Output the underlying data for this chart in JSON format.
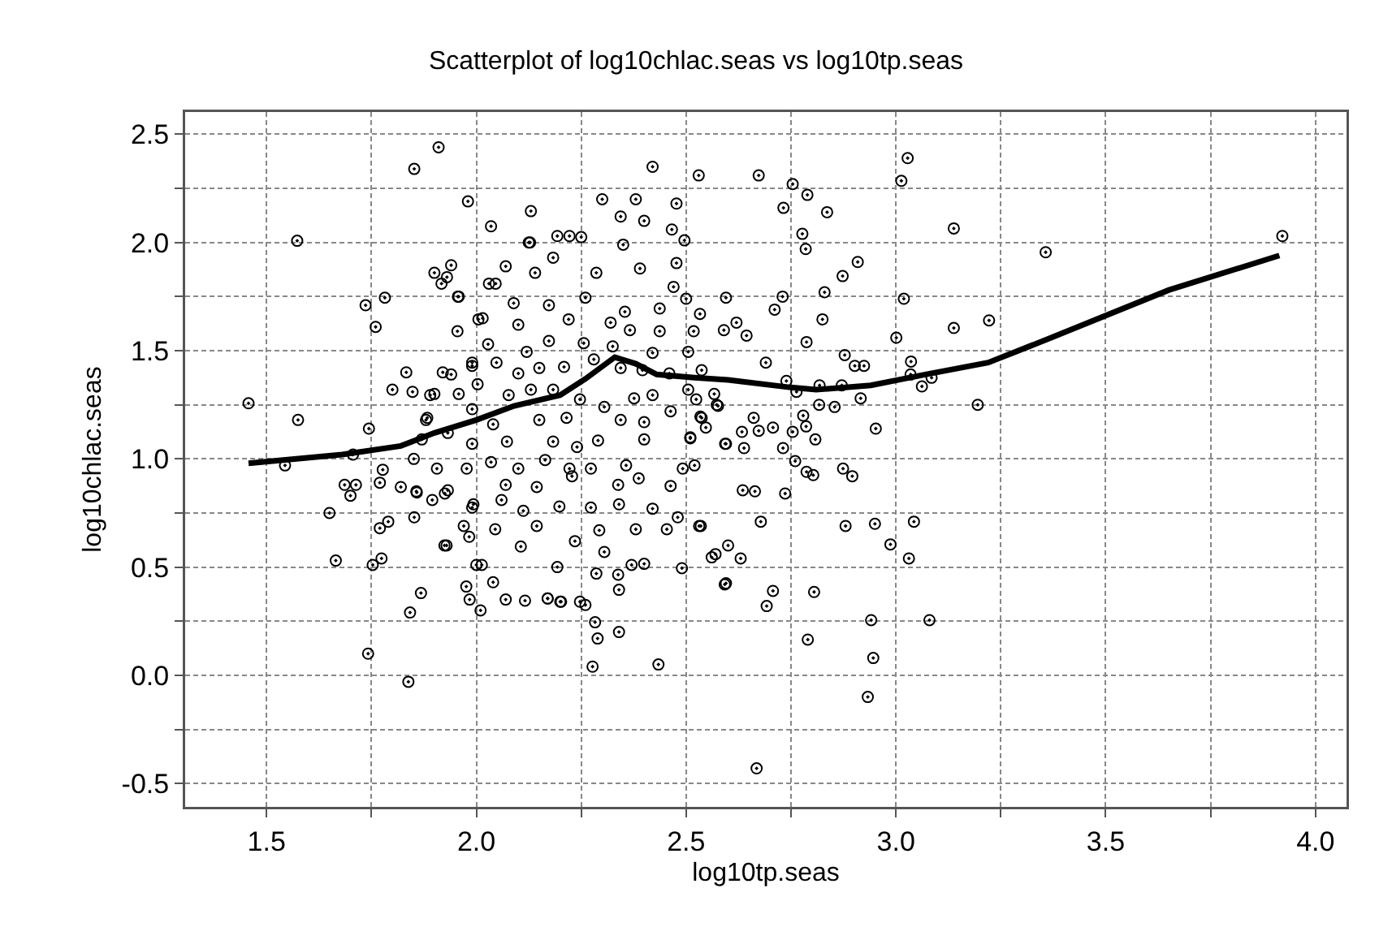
{
  "chart_data": {
    "type": "scatter",
    "title": "Scatterplot of log10chlac.seas vs log10tp.seas",
    "xlabel": "log10tp.seas",
    "ylabel": "log10chlac.seas",
    "xlim": [
      1.306,
      4.074
    ],
    "ylim": [
      -0.608,
      2.603
    ],
    "xticks": [
      1.5,
      {
        "value": 1.75,
        "label": null
      },
      "2.0",
      {
        "value": 2.25,
        "label": null
      },
      2.5,
      {
        "value": 2.75,
        "label": null
      },
      "3.0",
      {
        "value": 3.25,
        "label": null
      },
      3.5,
      {
        "value": 3.75,
        "label": null
      },
      "4.0"
    ],
    "yticks": [
      "-0.5",
      {
        "value": -0.25,
        "label": null
      },
      "0.0",
      {
        "value": 0.25,
        "label": null
      },
      0.5,
      {
        "value": 0.75,
        "label": null
      },
      "1.0",
      {
        "value": 1.25,
        "label": null
      },
      1.5,
      {
        "value": 1.75,
        "label": null
      },
      "2.0",
      {
        "value": 2.25,
        "label": null
      },
      2.5
    ],
    "grid": true,
    "series": [
      {
        "color": "#000000",
        "marker": "circle",
        "x": [
          1.457,
          1.573,
          1.575,
          1.544,
          1.65,
          1.665,
          1.686,
          1.713,
          1.7,
          1.706,
          1.736,
          1.76,
          1.782,
          1.744,
          1.742,
          1.753,
          1.774,
          1.77,
          1.79,
          1.77,
          1.777,
          1.82,
          1.838,
          1.852,
          1.91,
          1.842,
          1.868,
          1.852,
          1.857,
          1.851,
          1.833,
          1.8,
          1.848,
          1.88,
          1.87,
          1.895,
          1.89,
          1.9,
          1.917,
          1.93,
          1.94,
          1.956,
          1.925,
          1.924,
          1.92,
          1.94,
          1.955,
          1.98,
          1.97,
          1.976,
          1.984,
          2.01,
          2.0,
          1.993,
          1.99,
          2.035,
          2.005,
          2.03,
          2.04,
          2.07,
          2.116,
          2.125,
          2.17,
          2.2,
          2.13,
          2.3,
          2.38,
          2.42,
          2.53,
          2.477,
          2.344,
          2.4,
          2.193,
          2.222,
          2.25,
          2.128,
          2.466,
          2.496,
          2.35,
          2.183,
          2.39,
          2.477,
          2.47,
          2.5,
          2.286,
          2.14,
          2.07,
          2.046,
          1.958,
          2.089,
          2.173,
          2.26,
          2.354,
          2.437,
          2.015,
          2.1,
          2.22,
          2.32,
          2.366,
          2.437,
          2.518,
          2.028,
          2.12,
          2.173,
          2.256,
          2.325,
          2.42,
          2.505,
          1.99,
          2.048,
          2.1,
          2.15,
          2.209,
          2.28,
          2.344,
          2.396,
          2.46,
          2.537,
          1.9,
          1.958,
          2.003,
          2.077,
          2.13,
          2.183,
          2.247,
          2.305,
          2.376,
          2.42,
          2.505,
          2.576,
          1.883,
          1.99,
          2.04,
          2.15,
          2.215,
          2.344,
          2.4,
          2.463,
          2.537,
          1.932,
          1.99,
          2.073,
          2.183,
          2.24,
          2.29,
          2.4,
          2.51,
          2.595,
          1.906,
          1.977,
          2.035,
          2.1,
          2.164,
          2.222,
          2.273,
          2.357,
          2.492,
          1.858,
          1.932,
          1.99,
          2.07,
          2.144,
          2.228,
          2.338,
          2.387,
          2.463,
          2.06,
          2.112,
          2.198,
          2.273,
          2.34,
          2.42,
          2.48,
          1.983,
          2.045,
          2.144,
          2.235,
          2.293,
          2.38,
          2.454,
          2.535,
          2.106,
          1.929,
          2.013,
          2.193,
          2.305,
          2.37,
          2.4,
          2.49,
          2.57,
          2.595,
          2.286,
          2.338,
          2.17,
          2.202,
          2.247,
          2.26,
          2.283,
          2.289,
          2.34,
          2.34,
          2.277,
          2.434,
          2.673,
          2.754,
          2.789,
          2.732,
          2.836,
          3.028,
          3.013,
          2.777,
          2.785,
          3.138,
          3.357,
          3.921,
          2.909,
          2.873,
          2.83,
          2.73,
          2.595,
          2.711,
          2.825,
          3.019,
          3.138,
          3.222,
          3.001,
          2.787,
          2.644,
          2.59,
          2.533,
          2.62,
          2.878,
          2.902,
          2.924,
          3.036,
          3.035,
          3.062,
          3.085,
          2.69,
          2.739,
          2.818,
          2.871,
          2.763,
          2.916,
          3.195,
          2.817,
          2.854,
          2.567,
          2.524,
          2.573,
          2.779,
          2.786,
          2.661,
          2.673,
          2.707,
          2.754,
          2.808,
          2.952,
          2.633,
          2.593,
          2.534,
          2.547,
          2.51,
          2.638,
          2.731,
          2.76,
          2.52,
          2.874,
          2.896,
          2.787,
          2.803,
          2.635,
          2.664,
          2.736,
          2.531,
          2.678,
          2.88,
          2.95,
          3.043,
          2.987,
          3.031,
          2.561,
          2.6,
          2.63,
          2.592,
          2.707,
          2.805,
          2.692,
          2.941,
          3.08,
          2.79,
          2.946,
          2.933,
          2.668
        ],
        "values": [
          1.257,
          2.008,
          1.18,
          0.97,
          0.75,
          0.53,
          0.88,
          0.88,
          0.83,
          1.02,
          1.71,
          1.61,
          1.745,
          1.14,
          0.1,
          0.51,
          0.54,
          0.68,
          0.71,
          0.89,
          0.95,
          0.87,
          -0.03,
          2.34,
          2.44,
          0.29,
          0.38,
          0.73,
          0.85,
          1.0,
          1.4,
          1.32,
          1.31,
          1.18,
          1.09,
          0.81,
          1.295,
          1.86,
          1.81,
          1.84,
          1.895,
          1.75,
          0.84,
          0.6,
          1.4,
          1.39,
          1.59,
          2.19,
          0.69,
          0.41,
          0.35,
          0.3,
          0.51,
          0.79,
          1.43,
          2.075,
          1.645,
          1.81,
          0.43,
          0.35,
          0.345,
          2.0,
          0.355,
          0.34,
          2.145,
          2.2,
          2.2,
          2.35,
          2.31,
          2.18,
          2.12,
          2.1,
          2.03,
          2.03,
          2.025,
          2.0,
          2.06,
          2.01,
          1.99,
          1.93,
          1.88,
          1.905,
          1.795,
          1.74,
          1.86,
          1.86,
          1.89,
          1.81,
          1.75,
          1.72,
          1.71,
          1.745,
          1.68,
          1.695,
          1.65,
          1.62,
          1.645,
          1.63,
          1.595,
          1.59,
          1.59,
          1.53,
          1.495,
          1.545,
          1.535,
          1.52,
          1.49,
          1.495,
          1.445,
          1.445,
          1.395,
          1.42,
          1.425,
          1.46,
          1.42,
          1.41,
          1.395,
          1.41,
          1.3,
          1.3,
          1.345,
          1.295,
          1.32,
          1.32,
          1.275,
          1.24,
          1.28,
          1.295,
          1.32,
          1.245,
          1.19,
          1.23,
          1.16,
          1.18,
          1.19,
          1.18,
          1.17,
          1.22,
          1.19,
          1.12,
          1.07,
          1.08,
          1.08,
          1.055,
          1.085,
          1.09,
          1.095,
          1.07,
          0.955,
          0.955,
          0.985,
          0.955,
          0.995,
          0.955,
          0.955,
          0.97,
          0.955,
          0.845,
          0.855,
          0.775,
          0.88,
          0.87,
          0.92,
          0.88,
          0.91,
          0.875,
          0.81,
          0.76,
          0.78,
          0.775,
          0.79,
          0.77,
          0.73,
          0.64,
          0.675,
          0.69,
          0.62,
          0.67,
          0.675,
          0.675,
          0.69,
          0.595,
          0.6,
          0.51,
          0.5,
          0.57,
          0.51,
          0.515,
          0.495,
          0.56,
          0.425,
          0.47,
          0.465,
          0.355,
          0.34,
          0.34,
          0.325,
          0.245,
          0.17,
          0.395,
          0.2,
          0.04,
          0.05,
          2.31,
          2.27,
          2.22,
          2.16,
          2.14,
          2.39,
          2.285,
          2.04,
          1.97,
          2.065,
          1.955,
          2.03,
          1.91,
          1.845,
          1.77,
          1.75,
          1.745,
          1.69,
          1.645,
          1.74,
          1.605,
          1.64,
          1.56,
          1.54,
          1.57,
          1.595,
          1.67,
          1.63,
          1.48,
          1.43,
          1.43,
          1.45,
          1.39,
          1.335,
          1.375,
          1.445,
          1.36,
          1.34,
          1.34,
          1.31,
          1.28,
          1.25,
          1.25,
          1.24,
          1.3,
          1.275,
          1.25,
          1.2,
          1.15,
          1.19,
          1.13,
          1.145,
          1.125,
          1.09,
          1.14,
          1.125,
          1.07,
          1.195,
          1.145,
          1.1,
          1.05,
          1.05,
          0.99,
          0.97,
          0.955,
          0.92,
          0.94,
          0.925,
          0.855,
          0.85,
          0.84,
          0.69,
          0.71,
          0.69,
          0.7,
          0.71,
          0.605,
          0.54,
          0.545,
          0.6,
          0.54,
          0.42,
          0.39,
          0.385,
          0.32,
          0.255,
          0.255,
          0.165,
          0.08,
          -0.1,
          -0.43
        ]
      },
      {
        "type": "line",
        "color": "#000000",
        "marker": "none",
        "line_style": "solid",
        "x": [
          1.457,
          1.68,
          1.82,
          1.9,
          2.0,
          2.09,
          2.2,
          2.26,
          2.33,
          2.38,
          2.43,
          2.52,
          2.6,
          2.75,
          2.81,
          2.94,
          3.07,
          3.22,
          3.37,
          3.65,
          3.914
        ],
        "values": [
          0.98,
          1.02,
          1.06,
          1.12,
          1.18,
          1.245,
          1.295,
          1.37,
          1.47,
          1.44,
          1.39,
          1.375,
          1.365,
          1.33,
          1.32,
          1.34,
          1.39,
          1.445,
          1.56,
          1.78,
          1.94
        ]
      }
    ]
  }
}
